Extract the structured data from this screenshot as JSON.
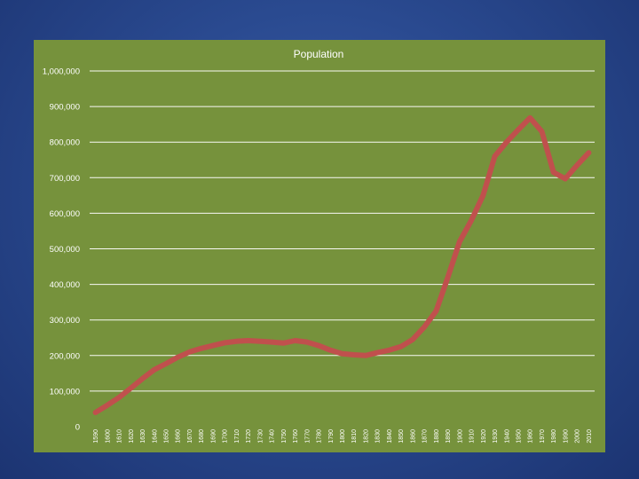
{
  "chart_data": {
    "type": "line",
    "title": "Population",
    "xlabel": "",
    "ylabel": "",
    "ylim": [
      0,
      1000000
    ],
    "yticks": [
      "0",
      "100,000",
      "200,000",
      "300,000",
      "400,000",
      "500,000",
      "600,000",
      "700,000",
      "800,000",
      "900,000",
      "1,000,000"
    ],
    "grid": true,
    "legend": "none",
    "x": [
      "1590",
      "1600",
      "1610",
      "1620",
      "1630",
      "1640",
      "1650",
      "1660",
      "1670",
      "1680",
      "1690",
      "1700",
      "1710",
      "1720",
      "1730",
      "1740",
      "1750",
      "1760",
      "1770",
      "1780",
      "1790",
      "1800",
      "1810",
      "1820",
      "1830",
      "1840",
      "1850",
      "1860",
      "1870",
      "1880",
      "1890",
      "1900",
      "1910",
      "1920",
      "1930",
      "1940",
      "1950",
      "1960",
      "1970",
      "1980",
      "1990",
      "2000",
      "2010"
    ],
    "series": [
      {
        "values": [
          40000,
          60000,
          82000,
          108000,
          135000,
          160000,
          177000,
          195000,
          210000,
          220000,
          228000,
          236000,
          240000,
          242000,
          240000,
          238000,
          235000,
          242000,
          238000,
          228000,
          215000,
          205000,
          202000,
          200000,
          208000,
          215000,
          225000,
          245000,
          280000,
          325000,
          420000,
          520000,
          580000,
          650000,
          760000,
          800000,
          835000,
          868000,
          830000,
          715000,
          697000,
          735000,
          770000
        ],
        "color": "#c0504d"
      }
    ],
    "colors": {
      "background": "#76923c",
      "line": "#c0504d",
      "text": "#ffffff"
    }
  }
}
